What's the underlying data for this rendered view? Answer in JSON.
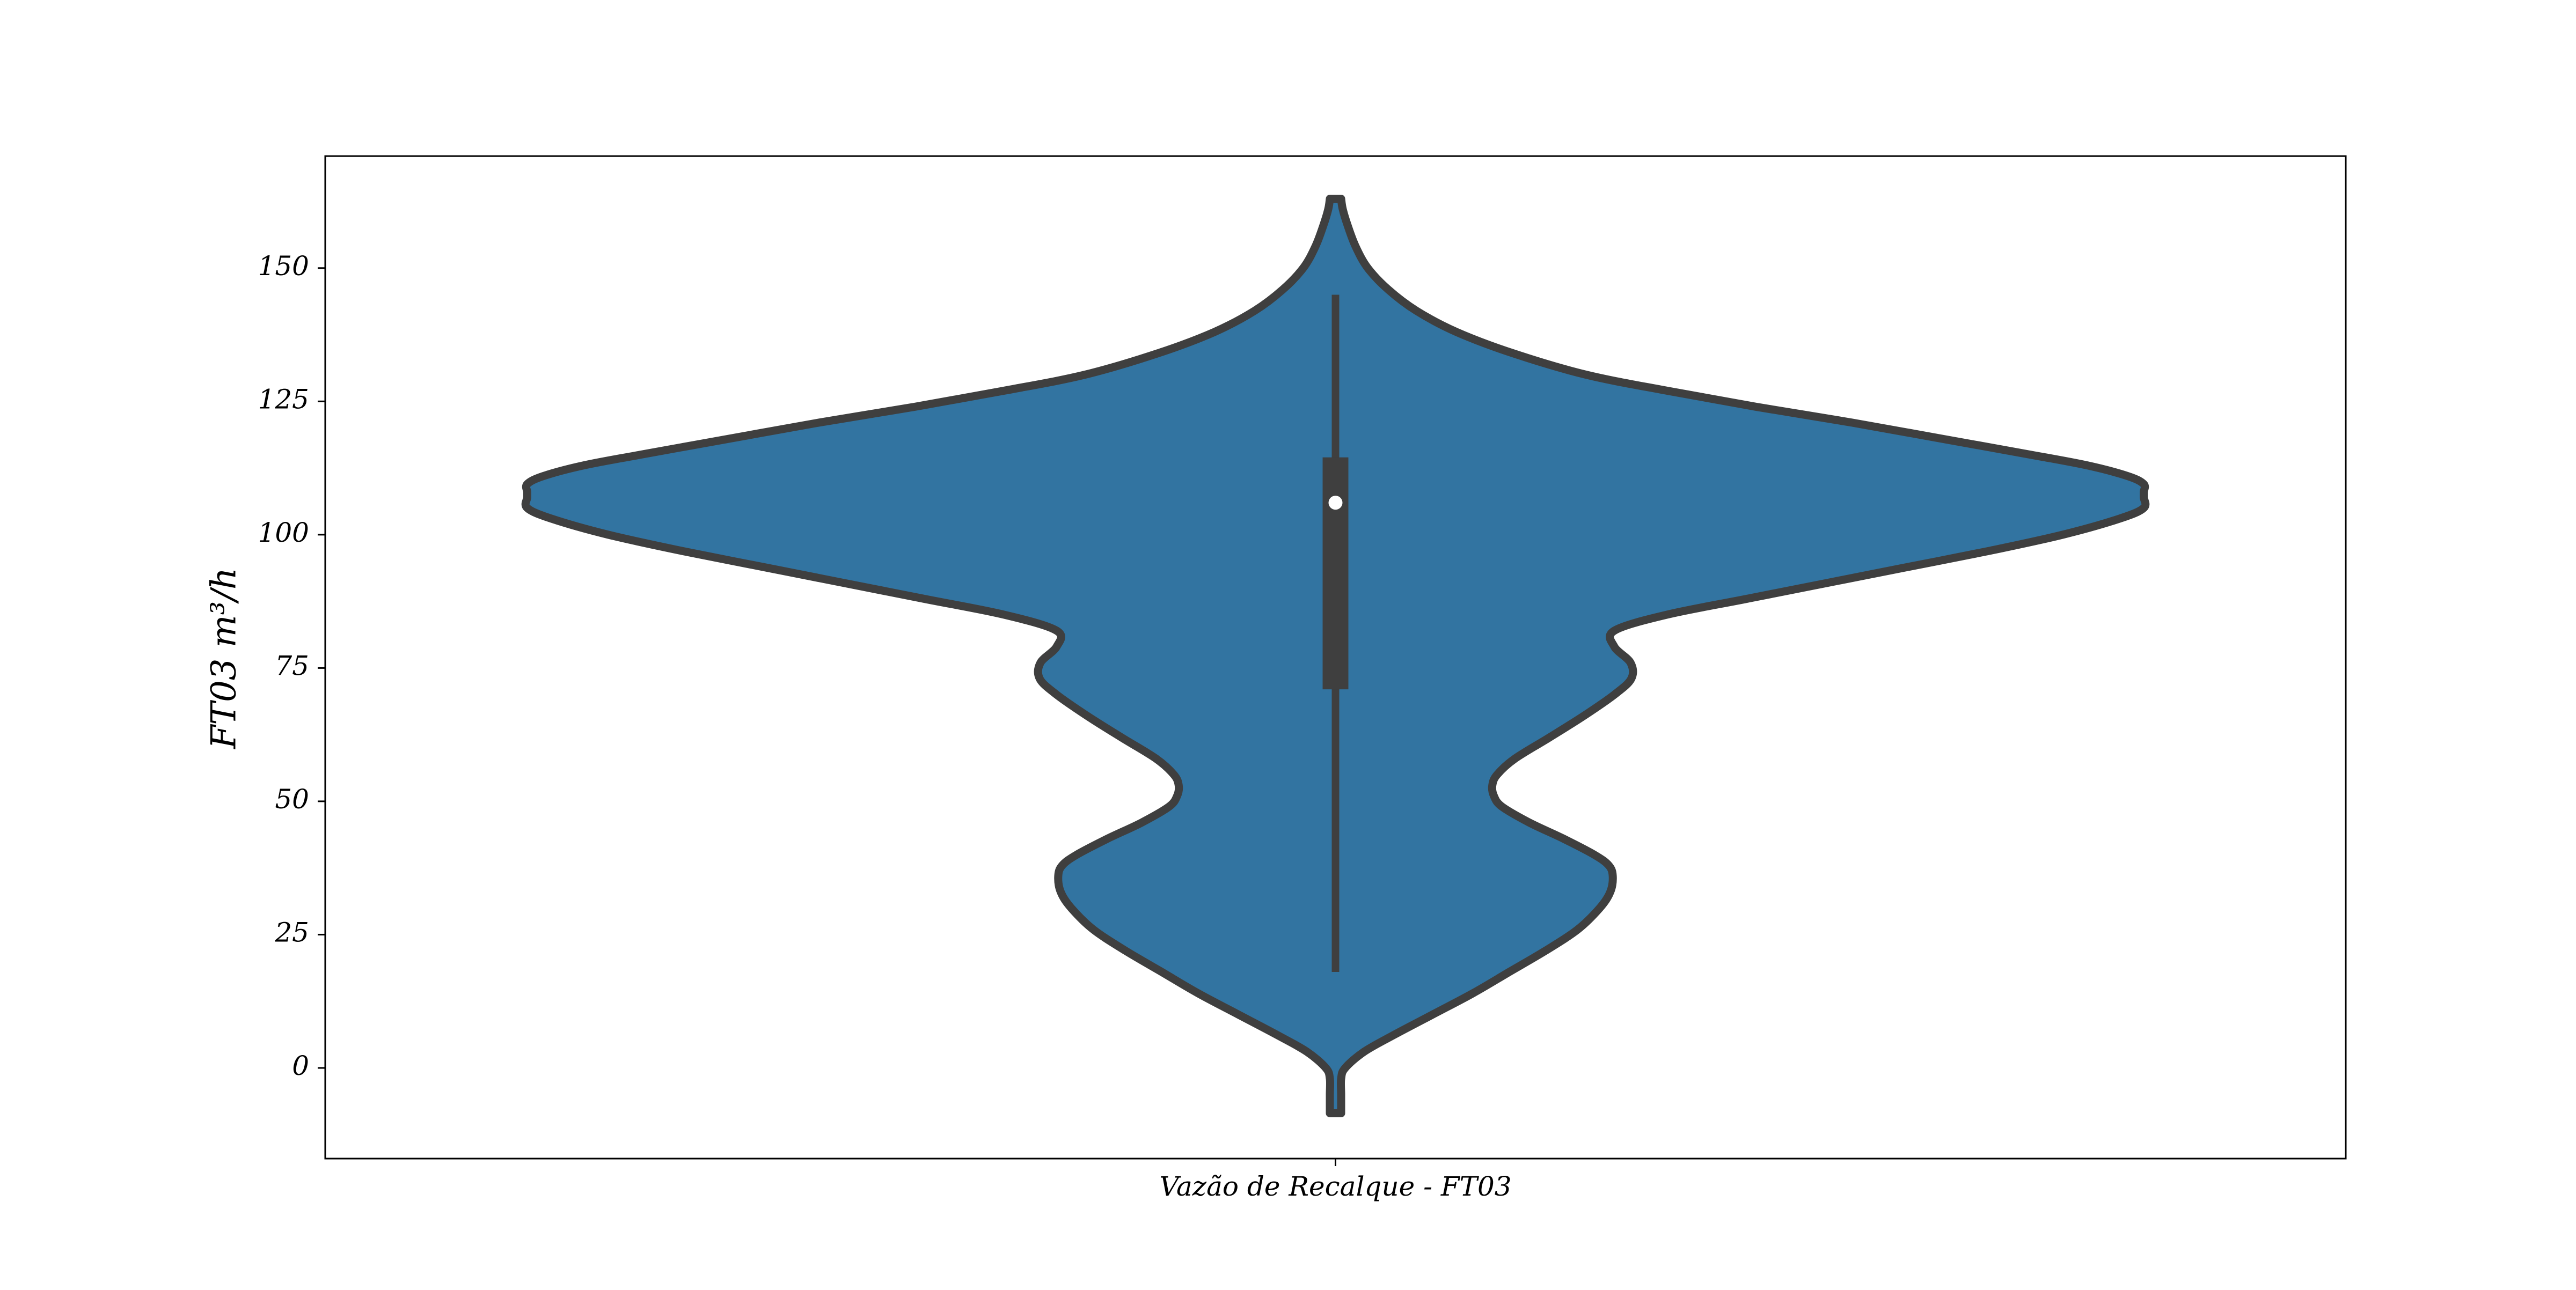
{
  "chart_data": {
    "type": "violin",
    "categories": [
      "Vazão de Recalque - FT03"
    ],
    "title": "",
    "xlabel": "",
    "ylabel": "FT03 m³/h",
    "ylim": [
      -17,
      171
    ],
    "yticks": [
      0,
      25,
      50,
      75,
      100,
      125,
      150
    ],
    "grid": false,
    "legend": "none",
    "colors": {
      "fill": "#3274a1",
      "outline": "#3f3f3f",
      "median_marker": "#ffffff",
      "frame": "#000000"
    },
    "violins": [
      {
        "category": "Vazão de Recalque - FT03",
        "range": [
          -8.5,
          163
        ],
        "density_profile": {
          "y": [
            -8.5,
            -5,
            -2,
            0,
            3,
            6,
            10,
            14,
            18,
            22,
            26,
            30,
            33,
            36,
            38,
            40,
            43,
            46,
            49,
            51,
            53,
            55,
            58,
            62,
            66,
            70,
            73,
            76,
            79,
            82,
            85,
            88,
            91,
            94,
            97,
            100,
            103,
            105,
            107,
            108,
            109.5,
            111,
            113,
            115,
            118,
            121,
            124,
            127,
            130,
            134,
            138,
            142,
            146,
            150,
            154,
            158,
            161,
            163
          ],
          "half_width_fraction": [
            0.007,
            0.007,
            0.007,
            0.012,
            0.035,
            0.07,
            0.12,
            0.17,
            0.215,
            0.26,
            0.3,
            0.327,
            0.34,
            0.343,
            0.338,
            0.32,
            0.282,
            0.24,
            0.206,
            0.196,
            0.194,
            0.2,
            0.222,
            0.265,
            0.307,
            0.345,
            0.366,
            0.365,
            0.345,
            0.345,
            0.41,
            0.51,
            0.61,
            0.71,
            0.81,
            0.9,
            0.97,
            1.0,
            1.0,
            1.0,
            1.0,
            0.98,
            0.93,
            0.86,
            0.75,
            0.64,
            0.52,
            0.41,
            0.31,
            0.22,
            0.15,
            0.1,
            0.065,
            0.04,
            0.025,
            0.015,
            0.009,
            0.007
          ]
        },
        "box": {
          "whisker_low": 18,
          "q1": 71,
          "median": 106,
          "q3": 114.5,
          "whisker_high": 145
        }
      }
    ]
  }
}
